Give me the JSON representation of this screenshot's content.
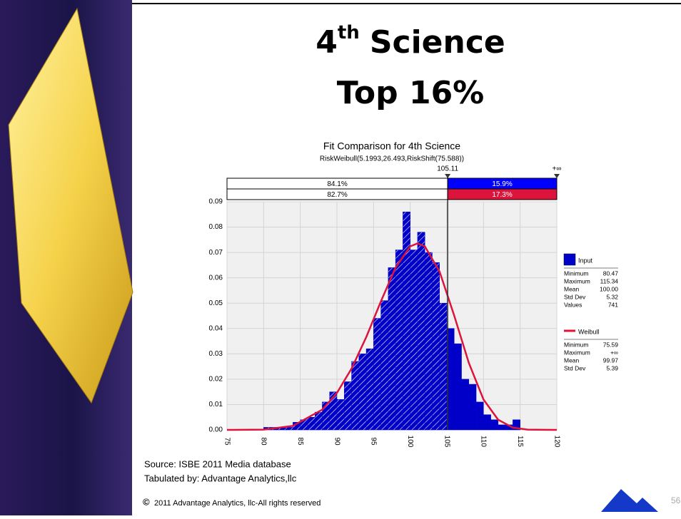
{
  "slide": {
    "title": {
      "number": "4",
      "sup": "th",
      "rest": "Science",
      "line2": "Top 16%"
    },
    "source": "Source: ISBE 2011 Media database",
    "tabulated": "Tabulated by: Advantage Analytics,llc",
    "copyright_symbol": "©",
    "copyright": "2011 Advantage Analytics, llc-All rights reserved",
    "page_number": "56"
  },
  "chart_data": {
    "type": "histogram",
    "title": "Fit Comparison for 4th Science",
    "subtitle": "RiskWeibull(5.1993,26.493,RiskShift(75.588))",
    "bins": [
      80,
      81,
      82,
      83,
      84,
      85,
      86,
      87,
      88,
      89,
      90,
      91,
      92,
      93,
      94,
      95,
      96,
      97,
      98,
      99,
      100,
      101,
      102,
      103,
      104,
      105,
      106,
      107,
      108,
      109,
      110,
      111,
      112,
      113,
      114,
      115
    ],
    "series": [
      {
        "name": "Input",
        "color": "#0000c8",
        "values": [
          0.001,
          0.001,
          0.001,
          0.001,
          0.003,
          0.004,
          0.005,
          0.007,
          0.011,
          0.015,
          0.012,
          0.019,
          0.027,
          0.03,
          0.032,
          0.044,
          0.051,
          0.064,
          0.071,
          0.086,
          0.071,
          0.078,
          0.07,
          0.066,
          0.05,
          0.04,
          0.034,
          0.02,
          0.018,
          0.011,
          0.006,
          0.004,
          0.002,
          0.002,
          0.004
        ]
      }
    ],
    "fit": {
      "name": "Weibull",
      "color": "#dc143c",
      "x": [
        75,
        75.588,
        80,
        84,
        88,
        90,
        92,
        94,
        96,
        98,
        100,
        101,
        102,
        104,
        106,
        108,
        110,
        112,
        114,
        116,
        120
      ],
      "values": [
        0,
        0,
        0.0001,
        0.0016,
        0.008,
        0.0146,
        0.0242,
        0.0366,
        0.0507,
        0.064,
        0.0724,
        0.0736,
        0.0724,
        0.0625,
        0.0451,
        0.0264,
        0.012,
        0.004,
        0.0009,
        0.0001,
        0
      ]
    },
    "threshold": 105.11,
    "upper_label": "+∞",
    "probabilities": [
      {
        "values": [
          84.1,
          15.9
        ],
        "value_labels": [
          "84.1%",
          "15.9%"
        ],
        "color": "#0000ff"
      },
      {
        "values": [
          82.7,
          17.3
        ],
        "value_labels": [
          "82.7%",
          "17.3%"
        ],
        "color": "#dc143c"
      }
    ],
    "stats": [
      {
        "rows": [
          [
            "Minimum",
            "80.47"
          ],
          [
            "Maximum",
            "115.34"
          ],
          [
            "Mean",
            "100.00"
          ],
          [
            "Std Dev",
            "5.32"
          ],
          [
            "Values",
            "741"
          ]
        ]
      },
      {
        "rows": [
          [
            "Minimum",
            "75.59"
          ],
          [
            "Maximum",
            "+∞"
          ],
          [
            "Mean",
            "99.97"
          ],
          [
            "Std Dev",
            "5.39"
          ]
        ]
      }
    ],
    "xlim": [
      75,
      120
    ],
    "xticks": [
      75,
      80,
      85,
      90,
      95,
      100,
      105,
      110,
      115,
      120
    ],
    "ylim": [
      0,
      0.09
    ],
    "yticks": [
      {
        "value": 0,
        "label": "0.00"
      },
      0.01,
      0.02,
      0.03,
      0.04,
      0.05,
      0.06,
      0.07,
      0.08,
      0.09
    ],
    "grid": true
  }
}
